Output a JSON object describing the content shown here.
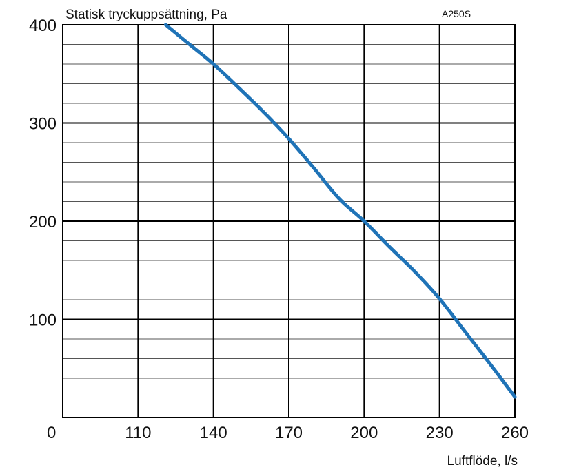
{
  "chart_data": {
    "type": "line",
    "ylabel": "Statisk tryckuppsättning, Pa",
    "xlabel": "Luftflöde, l/s",
    "model": "A250S",
    "origin_label": "0",
    "xlim": [
      80,
      260
    ],
    "ylim": [
      0,
      400
    ],
    "x_ticks": [
      110,
      140,
      170,
      200,
      230,
      260
    ],
    "x_tick_labels": [
      "110",
      "140",
      "170",
      "200",
      "230",
      "260"
    ],
    "y_ticks": [
      100,
      200,
      300,
      400
    ],
    "y_tick_labels": [
      "100",
      "200",
      "300",
      "400"
    ],
    "y_minor_step": 20,
    "grid": true,
    "series": [
      {
        "color": "#1f73b7",
        "x": [
          121,
          130,
          140,
          150,
          160,
          170,
          180,
          190,
          200,
          210,
          220,
          230,
          240,
          250,
          260
        ],
        "y": [
          400,
          381,
          360,
          336,
          311,
          284,
          254,
          223,
          200,
          174,
          149,
          121,
          88,
          55,
          21
        ]
      }
    ]
  }
}
